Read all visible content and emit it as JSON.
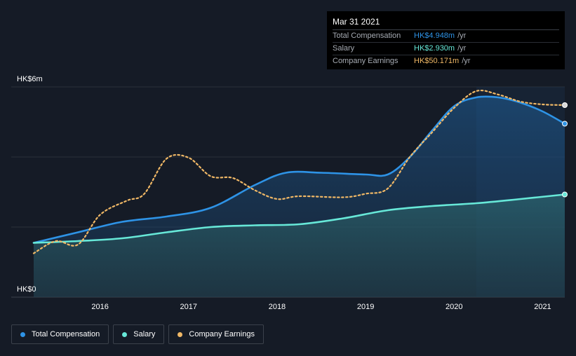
{
  "tooltip": {
    "date": "Mar 31 2021",
    "rows": [
      {
        "label": "Total Compensation",
        "value": "HK$4.948m",
        "unit": "/yr",
        "color": "#2e93e6"
      },
      {
        "label": "Salary",
        "value": "HK$2.930m",
        "unit": "/yr",
        "color": "#67e8d8"
      },
      {
        "label": "Company Earnings",
        "value": "HK$50.171m",
        "unit": "/yr",
        "color": "#f0b866"
      }
    ]
  },
  "legend": [
    {
      "label": "Total Compensation",
      "color": "#2e93e6"
    },
    {
      "label": "Salary",
      "color": "#67e8d8"
    },
    {
      "label": "Company Earnings",
      "color": "#f0b866"
    }
  ],
  "chart_data": {
    "type": "area",
    "y_top_label": "HK$6m",
    "y_bottom_label": "HK$0",
    "ylim": [
      0,
      6
    ],
    "xlim": [
      2015.25,
      2021.25
    ],
    "x_ticks": [
      {
        "value": 2016,
        "label": "2016"
      },
      {
        "value": 2017,
        "label": "2017"
      },
      {
        "value": 2018,
        "label": "2018"
      },
      {
        "value": 2019,
        "label": "2019"
      },
      {
        "value": 2020,
        "label": "2020"
      },
      {
        "value": 2021,
        "label": "2021"
      }
    ],
    "grid": true,
    "series": [
      {
        "name": "Total Compensation",
        "color": "#2e93e6",
        "points": [
          [
            2015.25,
            1.55
          ],
          [
            2015.75,
            1.85
          ],
          [
            2016.25,
            2.15
          ],
          [
            2016.75,
            2.3
          ],
          [
            2017.25,
            2.55
          ],
          [
            2017.75,
            3.2
          ],
          [
            2018.1,
            3.55
          ],
          [
            2018.5,
            3.55
          ],
          [
            2019.0,
            3.5
          ],
          [
            2019.25,
            3.5
          ],
          [
            2019.5,
            4.0
          ],
          [
            2019.75,
            4.75
          ],
          [
            2020.0,
            5.45
          ],
          [
            2020.25,
            5.7
          ],
          [
            2020.5,
            5.7
          ],
          [
            2020.75,
            5.55
          ],
          [
            2021.0,
            5.3
          ],
          [
            2021.25,
            4.95
          ]
        ]
      },
      {
        "name": "Salary",
        "color": "#67e8d8",
        "points": [
          [
            2015.25,
            1.55
          ],
          [
            2015.75,
            1.6
          ],
          [
            2016.25,
            1.68
          ],
          [
            2016.75,
            1.85
          ],
          [
            2017.25,
            2.0
          ],
          [
            2017.75,
            2.05
          ],
          [
            2018.25,
            2.08
          ],
          [
            2018.75,
            2.25
          ],
          [
            2019.25,
            2.48
          ],
          [
            2019.75,
            2.6
          ],
          [
            2020.25,
            2.68
          ],
          [
            2020.75,
            2.8
          ],
          [
            2021.25,
            2.93
          ]
        ]
      },
      {
        "name": "Company Earnings",
        "color": "#f0b866",
        "points": [
          [
            2015.25,
            1.25
          ],
          [
            2015.5,
            1.6
          ],
          [
            2015.75,
            1.5
          ],
          [
            2016.0,
            2.35
          ],
          [
            2016.3,
            2.75
          ],
          [
            2016.5,
            2.95
          ],
          [
            2016.75,
            3.95
          ],
          [
            2017.0,
            3.98
          ],
          [
            2017.25,
            3.45
          ],
          [
            2017.5,
            3.4
          ],
          [
            2017.75,
            3.05
          ],
          [
            2018.0,
            2.8
          ],
          [
            2018.25,
            2.88
          ],
          [
            2018.75,
            2.85
          ],
          [
            2019.0,
            2.95
          ],
          [
            2019.25,
            3.1
          ],
          [
            2019.5,
            4.0
          ],
          [
            2019.75,
            4.7
          ],
          [
            2020.0,
            5.4
          ],
          [
            2020.25,
            5.88
          ],
          [
            2020.5,
            5.78
          ],
          [
            2020.75,
            5.58
          ],
          [
            2021.0,
            5.5
          ],
          [
            2021.25,
            5.48
          ]
        ]
      }
    ]
  }
}
